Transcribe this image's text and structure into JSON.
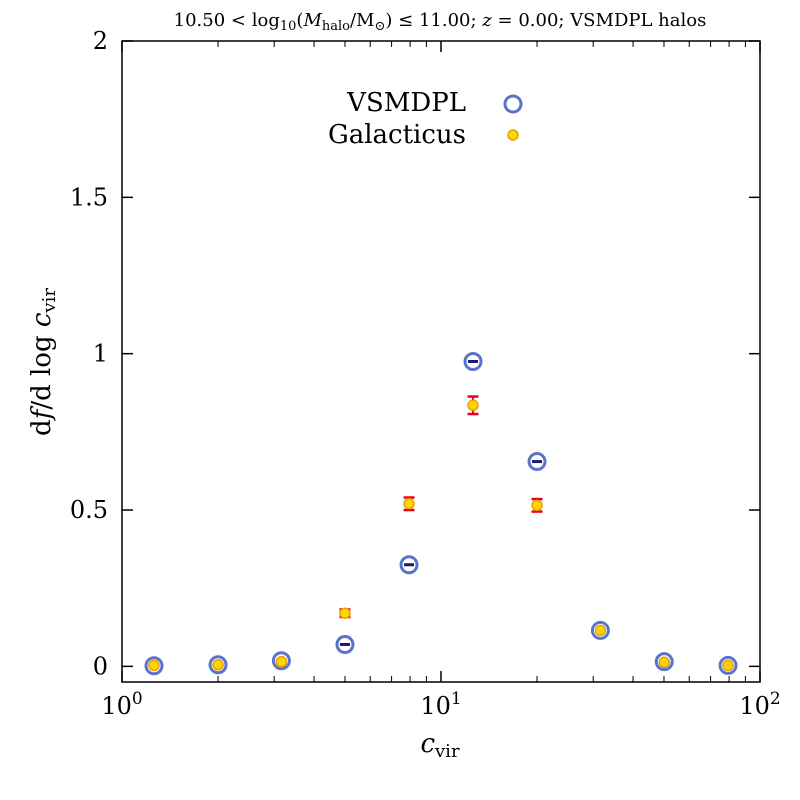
{
  "chart_data": {
    "type": "scatter",
    "title": "10.50 < log₁₀(M_halo/M⊙) ≤ 11.00; z = 0.00; VSMDPL halos",
    "title_parts": {
      "lower": "10.50 <",
      "log": "log",
      "log_sub": "10",
      "open": "(",
      "M": "M",
      "M_sub": "halo",
      "mid": "/M",
      "sun_sub": "⊙",
      "close": ")",
      "upper": "≤ 11.00;",
      "z": "z",
      "z_rest": "= 0.00; VSMDPL halos"
    },
    "xlabel": "c_vir",
    "xlabel_parts": {
      "main": "c",
      "sub": "vir"
    },
    "ylabel": "df/dlog c_vir",
    "ylabel_parts": {
      "main": "d",
      "f": "f",
      "mid": "/d log",
      "c": "c",
      "sub": "vir"
    },
    "x_scale": "log",
    "xlim": [
      1,
      100
    ],
    "ylim": [
      -0.05,
      2
    ],
    "x_ticks": [
      {
        "value": 1,
        "base": "10",
        "exp": "0"
      },
      {
        "value": 10,
        "base": "10",
        "exp": "1"
      },
      {
        "value": 100,
        "base": "10",
        "exp": "2"
      }
    ],
    "y_ticks": [
      {
        "value": 0,
        "label": "0"
      },
      {
        "value": 0.5,
        "label": "0.5"
      },
      {
        "value": 1,
        "label": "1"
      },
      {
        "value": 1.5,
        "label": "1.5"
      },
      {
        "value": 2,
        "label": "2"
      }
    ],
    "legend_position": "top-center",
    "series": [
      {
        "name": "VSMDPL",
        "marker": "open-circle",
        "color": "#5b73c9",
        "error_color": "#1a1a6e",
        "points": [
          {
            "x": 1.26,
            "y": 0.002,
            "err": 0.001
          },
          {
            "x": 2.0,
            "y": 0.005,
            "err": 0.001
          },
          {
            "x": 3.16,
            "y": 0.018,
            "err": 0.002
          },
          {
            "x": 5.0,
            "y": 0.07,
            "err": 0.004
          },
          {
            "x": 7.94,
            "y": 0.325,
            "err": 0.007
          },
          {
            "x": 12.6,
            "y": 0.975,
            "err": 0.008
          },
          {
            "x": 20.0,
            "y": 0.655,
            "err": 0.007
          },
          {
            "x": 31.6,
            "y": 0.115,
            "err": 0.004
          },
          {
            "x": 50.1,
            "y": 0.015,
            "err": 0.002
          },
          {
            "x": 79.4,
            "y": 0.003,
            "err": 0.001
          }
        ]
      },
      {
        "name": "Galacticus",
        "marker": "filled-star-dot",
        "color": "#ffd700",
        "edge_color": "#e8a000",
        "error_color": "#e8001c",
        "points": [
          {
            "x": 1.26,
            "y": 0.003,
            "err": 0.005
          },
          {
            "x": 2.0,
            "y": 0.005,
            "err": 0.005
          },
          {
            "x": 3.16,
            "y": 0.015,
            "err": 0.006
          },
          {
            "x": 5.0,
            "y": 0.17,
            "err": 0.012
          },
          {
            "x": 7.94,
            "y": 0.52,
            "err": 0.02
          },
          {
            "x": 12.6,
            "y": 0.835,
            "err": 0.028
          },
          {
            "x": 20.0,
            "y": 0.515,
            "err": 0.02
          },
          {
            "x": 31.6,
            "y": 0.115,
            "err": 0.009
          },
          {
            "x": 50.1,
            "y": 0.013,
            "err": 0.004
          },
          {
            "x": 79.4,
            "y": 0.003,
            "err": 0.003
          }
        ]
      }
    ]
  }
}
